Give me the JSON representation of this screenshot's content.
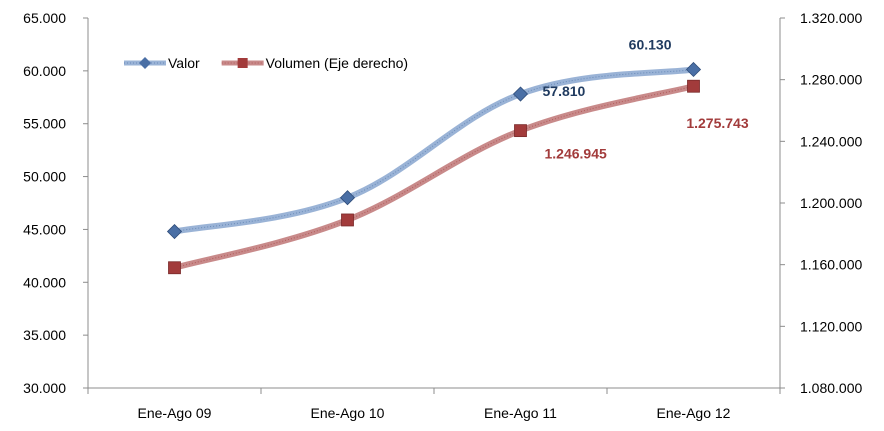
{
  "chart_data": {
    "type": "line",
    "categories": [
      "Ene-Ago 09",
      "Ene-Ago 10",
      "Ene-Ago 11",
      "Ene-Ago 12"
    ],
    "series": [
      {
        "name": "Valor",
        "axis": "left",
        "color": "#4a6fa5",
        "line_color": "#9ab3d6",
        "marker": "diamond",
        "values": [
          44800,
          48000,
          57810,
          60130
        ],
        "data_labels": [
          "",
          "",
          "57.810",
          "60.130"
        ],
        "label_color": "#1f3a5f"
      },
      {
        "name": "Volumen (Eje derecho)",
        "axis": "right",
        "color": "#a23b3b",
        "line_color": "#c88a8a",
        "marker": "square",
        "values": [
          1158000,
          1189000,
          1246945,
          1275743
        ],
        "data_labels": [
          "",
          "",
          "1.246.945",
          "1.275.743"
        ],
        "label_color": "#a23b3b"
      }
    ],
    "y_left": {
      "min": 30000,
      "max": 65000,
      "ticks": [
        65000,
        60000,
        55000,
        50000,
        45000,
        40000,
        35000,
        30000
      ],
      "tick_labels": [
        "65.000",
        "60.000",
        "55.000",
        "50.000",
        "45.000",
        "40.000",
        "35.000",
        "30.000"
      ]
    },
    "y_right": {
      "min": 1080000,
      "max": 1320000,
      "ticks": [
        1320000,
        1280000,
        1240000,
        1200000,
        1160000,
        1120000,
        1080000
      ],
      "tick_labels": [
        "1.320.000",
        "1.280.000",
        "1.240.000",
        "1.200.000",
        "1.160.000",
        "1.120.000",
        "1.080.000"
      ]
    },
    "grid": false,
    "legend_position": "top-left"
  }
}
